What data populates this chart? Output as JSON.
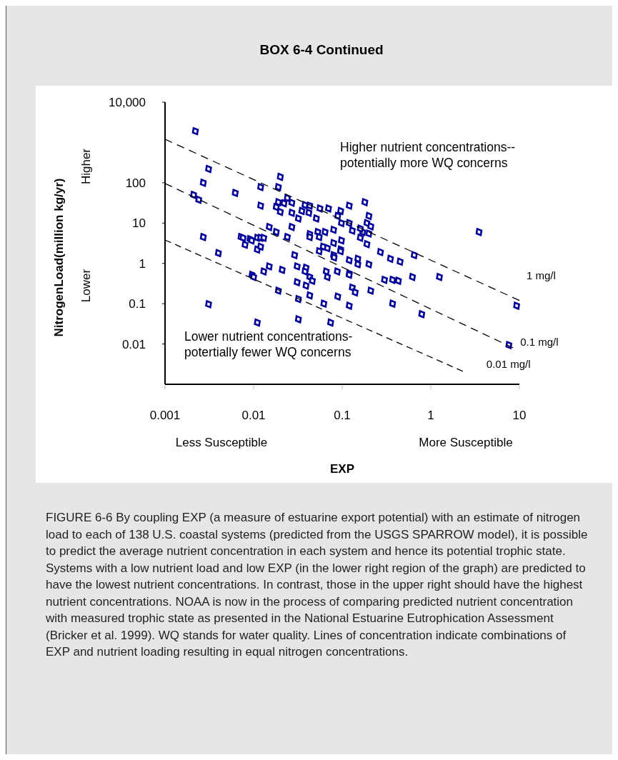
{
  "chart_data": {
    "type": "scatter",
    "title": "BOX 6-4 Continued",
    "xlabel": "EXP",
    "ylabel": "NitrogenLoad(million kg/yr)",
    "log": "xy",
    "xlim": [
      0.001,
      10
    ],
    "xticks": [
      0.001,
      0.01,
      0.1,
      1,
      10
    ],
    "ylim": [
      0.001,
      10000
    ],
    "yticks": [
      {
        "value": 10000,
        "label": "10,000"
      },
      100,
      10,
      1,
      0.1,
      0.01
    ],
    "series": [
      {
        "marker": "diamond",
        "color": "#000099",
        "x": [
          0.0022,
          0.0031,
          0.0027,
          0.0021,
          0.0024,
          0.0062,
          0.012,
          0.02,
          0.019,
          0.012,
          0.019,
          0.018,
          0.02,
          0.022,
          0.024,
          0.027,
          0.027,
          0.032,
          0.035,
          0.038,
          0.043,
          0.042,
          0.051,
          0.056,
          0.07,
          0.096,
          0.12,
          0.089,
          0.098,
          0.12,
          0.015,
          0.018,
          0.024,
          0.027,
          0.043,
          0.053,
          0.064,
          0.08,
          0.098,
          0.0027,
          0.0072,
          0.0076,
          0.0091,
          0.011,
          0.012,
          0.004,
          0.008,
          0.0095,
          0.011,
          0.012,
          0.013,
          0.029,
          0.043,
          0.055,
          0.061,
          0.055,
          0.068,
          0.08,
          0.08,
          0.096,
          0.12,
          0.0096,
          0.01,
          0.013,
          0.015,
          0.021,
          0.031,
          0.039,
          0.038,
          0.043,
          0.046,
          0.031,
          0.039,
          0.066,
          0.068,
          0.088,
          0.12,
          0.019,
          0.032,
          0.043,
          0.062,
          0.089,
          0.12,
          0.13,
          0.0031,
          0.011,
          0.032,
          0.074,
          0.18,
          0.2,
          0.19,
          0.21,
          0.17,
          0.16,
          0.13,
          0.2,
          3.5,
          0.081,
          0.096,
          0.15,
          0.15,
          0.2,
          0.16,
          0.19,
          0.27,
          0.35,
          0.45,
          0.65,
          0.12,
          0.14,
          0.21,
          0.3,
          0.37,
          0.43,
          0.62,
          1.25,
          0.37,
          0.79,
          9.3,
          7.6
        ],
        "values": [
          1900,
          220,
          100,
          50,
          38,
          56,
          78,
          140,
          78,
          27,
          33,
          25,
          19,
          31,
          42,
          32,
          18,
          13,
          20,
          28,
          27,
          18,
          13,
          23,
          23,
          20,
          27,
          15,
          10,
          10,
          8,
          6,
          4.5,
          8,
          5.3,
          6,
          6,
          6.8,
          3.7,
          4.5,
          4.5,
          4.3,
          4,
          4.3,
          4.3,
          1.8,
          2.9,
          3.7,
          2.2,
          2.6,
          4.3,
          1.6,
          4.5,
          4.5,
          2.6,
          2,
          2.4,
          3.2,
          1.6,
          2.2,
          1.2,
          0.52,
          0.46,
          0.63,
          0.84,
          0.69,
          0.84,
          0.78,
          0.63,
          0.46,
          0.37,
          0.34,
          0.28,
          0.63,
          0.46,
          0.63,
          0.56,
          0.21,
          0.13,
          0.16,
          0.1,
          0.15,
          0.089,
          0.25,
          0.097,
          0.034,
          0.041,
          0.034,
          33,
          15,
          10,
          8.3,
          6,
          7.3,
          6.5,
          5.5,
          6,
          1.4,
          2,
          1.3,
          0.95,
          0.95,
          4.3,
          3,
          1.9,
          1.3,
          1.1,
          1.6,
          0.52,
          0.19,
          0.21,
          0.39,
          0.39,
          0.37,
          0.46,
          0.46,
          0.1,
          0.055,
          0.089,
          0.0094
        ]
      },
      {
        "type": "line",
        "name": "1 mg/l",
        "color": "#000000",
        "line_style": "dashed",
        "x": [
          0.001,
          10
        ],
        "values": [
          1200,
          0.12
        ]
      },
      {
        "type": "line",
        "name": "0.1 mg/l",
        "color": "#000000",
        "line_style": "dashed",
        "x": [
          0.001,
          8.5
        ],
        "values": [
          96,
          0.008
        ]
      },
      {
        "type": "line",
        "name": "0.01 mg/l",
        "color": "#000000",
        "line_style": "dashed",
        "x": [
          0.001,
          2.3
        ],
        "values": [
          3.8,
          0.0021
        ]
      }
    ],
    "annotations": [
      "Higher nutrient concentrations--\npotentially more WQ concerns",
      "Lower nutrient concentrations-\npotertially  fewer WQ concerns",
      "Higher",
      "Lower",
      "Less Susceptible",
      "More Susceptible",
      "FIGURE 6-6  By coupling EXP (a measure of estuarine export potential) with an estimate of nitrogen load to each of 138 U.S. coastal systems (predicted from the USGS SPARROW model), it is possible to predict the average nutrient concentration in each system and hence its potential trophic state.  Systems with a low nutrient load and low EXP (in the lower right region of the graph) are predicted to have the lowest nutrient concentrations.  In contrast, those in the upper right should have the highest nutrient concentrations.  NOAA is now in the process of comparing predicted nutrient concentration with measured trophic state as presented in the National Estuarine Eutrophication Assessment (Bricker et al. 1999).  WQ stands for water quality.  Lines of concentration indicate combinations of EXP and nutrient loading resulting in equal nitrogen concentrations."
    ]
  }
}
